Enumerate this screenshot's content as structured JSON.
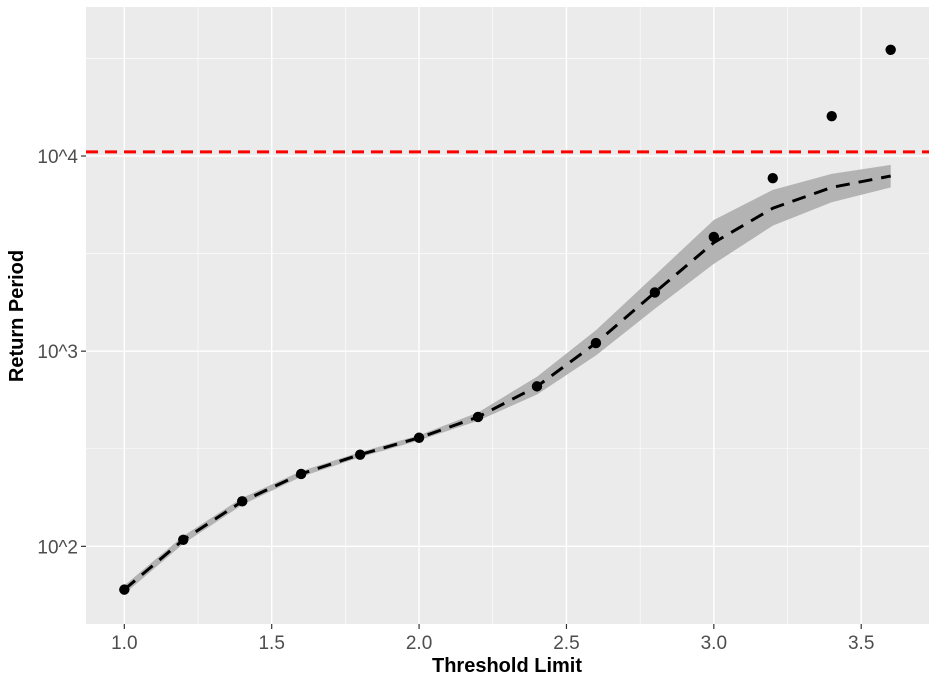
{
  "chart_data": {
    "type": "line",
    "title": "",
    "xlabel": "Threshold Limit",
    "ylabel": "Return Period",
    "xlim": [
      0.87,
      3.73
    ],
    "ylim": [
      40,
      58000
    ],
    "y_scale": "log10",
    "grid": true,
    "x_ticks": [
      {
        "value": 1.0,
        "label": "1.0"
      },
      {
        "value": 1.5,
        "label": "1.5"
      },
      {
        "value": 2.0,
        "label": "2.0"
      },
      {
        "value": 2.5,
        "label": "2.5"
      },
      {
        "value": 3.0,
        "label": "3.0"
      },
      {
        "value": 3.5,
        "label": "3.5"
      }
    ],
    "y_ticks": [
      {
        "value": 100,
        "label": "10^2"
      },
      {
        "value": 1000,
        "label": "10^3"
      },
      {
        "value": 10000,
        "label": "10^4"
      }
    ],
    "points": {
      "x": [
        1.0,
        1.2,
        1.4,
        1.6,
        1.8,
        2.0,
        2.2,
        2.4,
        2.6,
        2.8,
        3.0,
        3.2,
        3.4,
        3.6
      ],
      "y": [
        60,
        108,
        170,
        235,
        295,
        360,
        460,
        660,
        1100,
        2000,
        3850,
        7700,
        16000,
        35000
      ]
    },
    "fit": {
      "x": [
        1.0,
        1.2,
        1.4,
        1.6,
        1.8,
        2.0,
        2.2,
        2.4,
        2.6,
        2.8,
        3.0,
        3.2,
        3.4,
        3.6
      ],
      "y": [
        60,
        108,
        170,
        235,
        295,
        360,
        460,
        660,
        1100,
        2000,
        3600,
        5400,
        6900,
        7900
      ],
      "lower": [
        57,
        103,
        163,
        227,
        286,
        349,
        440,
        600,
        950,
        1650,
        2800,
        4400,
        5800,
        6900
      ],
      "upper": [
        63,
        113,
        177,
        243,
        304,
        371,
        485,
        740,
        1280,
        2450,
        4700,
        6700,
        8100,
        9000
      ],
      "color": "#000000",
      "band_color": "#b3b3b3"
    },
    "reference_line": {
      "y": 10500,
      "color": "#ff0000",
      "style": "dashed"
    },
    "colors": {
      "panel": "#ebebeb",
      "grid_major": "#ffffff",
      "points": "#000000"
    }
  }
}
